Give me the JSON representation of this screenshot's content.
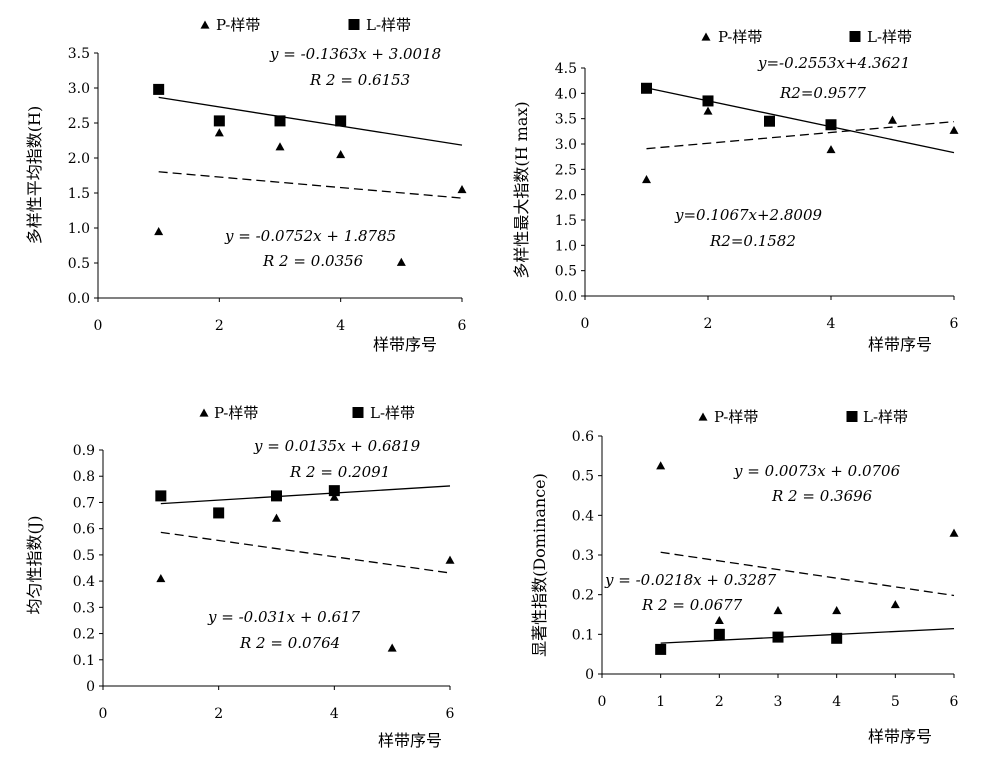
{
  "legend": {
    "p_label": "P-样带",
    "l_label": "L-样带"
  },
  "chart_data": [
    {
      "type": "scatter",
      "ylabel": "多样性平均指数(H)",
      "xlabel": "样带序号",
      "xlim": [
        0,
        6
      ],
      "ylim": [
        0,
        3.5
      ],
      "xticks": [
        "0",
        "2",
        "4",
        "6"
      ],
      "yticks": [
        "0.0",
        "0.5",
        "1.0",
        "1.5",
        "2.0",
        "2.5",
        "3.0",
        "3.5"
      ],
      "series": [
        {
          "name": "P-样带",
          "marker": "triangle",
          "x": [
            1,
            2,
            3,
            4,
            5,
            6
          ],
          "y": [
            0.95,
            2.36,
            2.16,
            2.05,
            0.51,
            1.55
          ]
        },
        {
          "name": "L-样带",
          "marker": "square",
          "x": [
            1,
            2,
            3,
            4
          ],
          "y": [
            2.98,
            2.53,
            2.53,
            2.53
          ]
        }
      ],
      "trendlines": [
        {
          "series": "L-样带",
          "style": "solid",
          "slope": -0.1363,
          "intercept": 3.0018,
          "x_range": [
            1,
            6
          ],
          "equation": "y = -0.1363x + 3.0018",
          "r2": "R 2 = 0.6153"
        },
        {
          "series": "P-样带",
          "style": "dashed",
          "slope": -0.0752,
          "intercept": 1.8785,
          "x_range": [
            1,
            6
          ],
          "equation": "y = -0.0752x + 1.8785",
          "r2": "R 2 = 0.0356"
        }
      ]
    },
    {
      "type": "scatter",
      "ylabel": "多样性最大指数(H max)",
      "xlabel": "样带序号",
      "xlim": [
        0,
        6
      ],
      "ylim": [
        0,
        4.5
      ],
      "xticks": [
        "0",
        "2",
        "4",
        "6"
      ],
      "yticks": [
        "0.0",
        "0.5",
        "1.0",
        "1.5",
        "2.0",
        "2.5",
        "3.0",
        "3.5",
        "4.0",
        "4.5"
      ],
      "series": [
        {
          "name": "P-样带",
          "marker": "triangle",
          "x": [
            1,
            2,
            3,
            4,
            5,
            6
          ],
          "y": [
            2.3,
            3.65,
            3.47,
            2.89,
            3.47,
            3.27
          ]
        },
        {
          "name": "L-样带",
          "marker": "square",
          "x": [
            1,
            2,
            3,
            4
          ],
          "y": [
            4.1,
            3.85,
            3.45,
            3.38
          ]
        }
      ],
      "trendlines": [
        {
          "series": "L-样带",
          "style": "solid",
          "slope": -0.2553,
          "intercept": 4.3621,
          "x_range": [
            1,
            6
          ],
          "equation": "y=-0.2553x+4.3621",
          "r2": "R2=0.9577"
        },
        {
          "series": "P-样带",
          "style": "dashed",
          "slope": 0.1067,
          "intercept": 2.8009,
          "x_range": [
            1,
            6
          ],
          "equation": "y=0.1067x+2.8009",
          "r2": "R2=0.1582"
        }
      ]
    },
    {
      "type": "scatter",
      "ylabel": "均匀性指数(J)",
      "xlabel": "样带序号",
      "xlim": [
        0,
        6
      ],
      "ylim": [
        0,
        0.9
      ],
      "xticks": [
        "0",
        "2",
        "4",
        "6"
      ],
      "yticks": [
        "0",
        "0.1",
        "0.2",
        "0.3",
        "0.4",
        "0.5",
        "0.6",
        "0.7",
        "0.8",
        "0.9"
      ],
      "series": [
        {
          "name": "P-样带",
          "marker": "triangle",
          "x": [
            1,
            2,
            3,
            4,
            5,
            6
          ],
          "y": [
            0.41,
            0.66,
            0.64,
            0.72,
            0.145,
            0.48
          ]
        },
        {
          "name": "L-样带",
          "marker": "square",
          "x": [
            1,
            2,
            3,
            4
          ],
          "y": [
            0.725,
            0.66,
            0.725,
            0.745
          ]
        }
      ],
      "trendlines": [
        {
          "series": "L-样带",
          "style": "solid",
          "slope": 0.0135,
          "intercept": 0.6819,
          "x_range": [
            1,
            6
          ],
          "equation": "y = 0.0135x + 0.6819",
          "r2": "R 2 = 0.2091"
        },
        {
          "series": "P-样带",
          "style": "dashed",
          "slope": -0.031,
          "intercept": 0.617,
          "x_range": [
            1,
            6
          ],
          "equation": "y = -0.031x + 0.617",
          "r2": "R 2 = 0.0764"
        }
      ]
    },
    {
      "type": "scatter",
      "ylabel": "显著性指数(Dominance)",
      "xlabel": "样带序号",
      "xlim": [
        0,
        6
      ],
      "ylim": [
        0,
        0.6
      ],
      "xticks": [
        "0",
        "1",
        "2",
        "3",
        "4",
        "5",
        "6"
      ],
      "yticks": [
        "0",
        "0.1",
        "0.2",
        "0.3",
        "0.4",
        "0.5",
        "0.6"
      ],
      "series": [
        {
          "name": "P-样带",
          "marker": "triangle",
          "x": [
            1,
            2,
            3,
            4,
            5,
            6
          ],
          "y": [
            0.525,
            0.135,
            0.16,
            0.16,
            0.175,
            0.355
          ]
        },
        {
          "name": "L-样带",
          "marker": "square",
          "x": [
            1,
            2,
            3,
            4
          ],
          "y": [
            0.062,
            0.1,
            0.093,
            0.09
          ]
        }
      ],
      "trendlines": [
        {
          "series": "L-样带",
          "style": "solid",
          "slope": 0.0073,
          "intercept": 0.0706,
          "x_range": [
            1,
            6
          ],
          "equation": "y = 0.0073x + 0.0706",
          "r2": "R 2 = 0.3696"
        },
        {
          "series": "P-样带",
          "style": "dashed",
          "slope": -0.0218,
          "intercept": 0.3287,
          "x_range": [
            1,
            6
          ],
          "equation": "y = -0.0218x + 0.3287",
          "r2": "R 2 = 0.0677"
        }
      ]
    }
  ]
}
